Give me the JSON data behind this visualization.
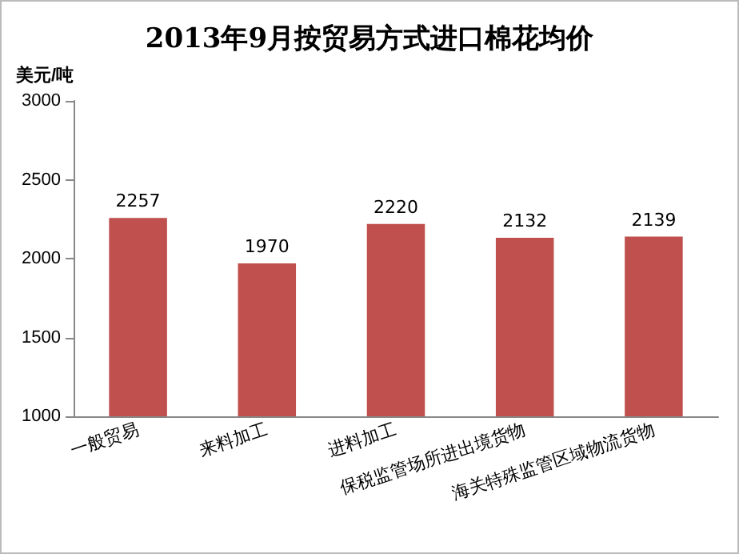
{
  "chart_data": {
    "type": "bar",
    "title": "2013年9月按贸易方式进口棉花均价",
    "ylabel": "美元/吨",
    "categories": [
      "一般贸易",
      "来料加工",
      "进料加工",
      "保税监管场所进出境货物",
      "海关特殊监管区域物流货物"
    ],
    "values": [
      2257,
      1970,
      2220,
      2132,
      2139
    ],
    "color": "#c0504d",
    "ylim": [
      1000,
      3000
    ],
    "yticks": [
      1000,
      1500,
      2000,
      2500,
      3000
    ],
    "grid": false,
    "data_labels": true
  }
}
